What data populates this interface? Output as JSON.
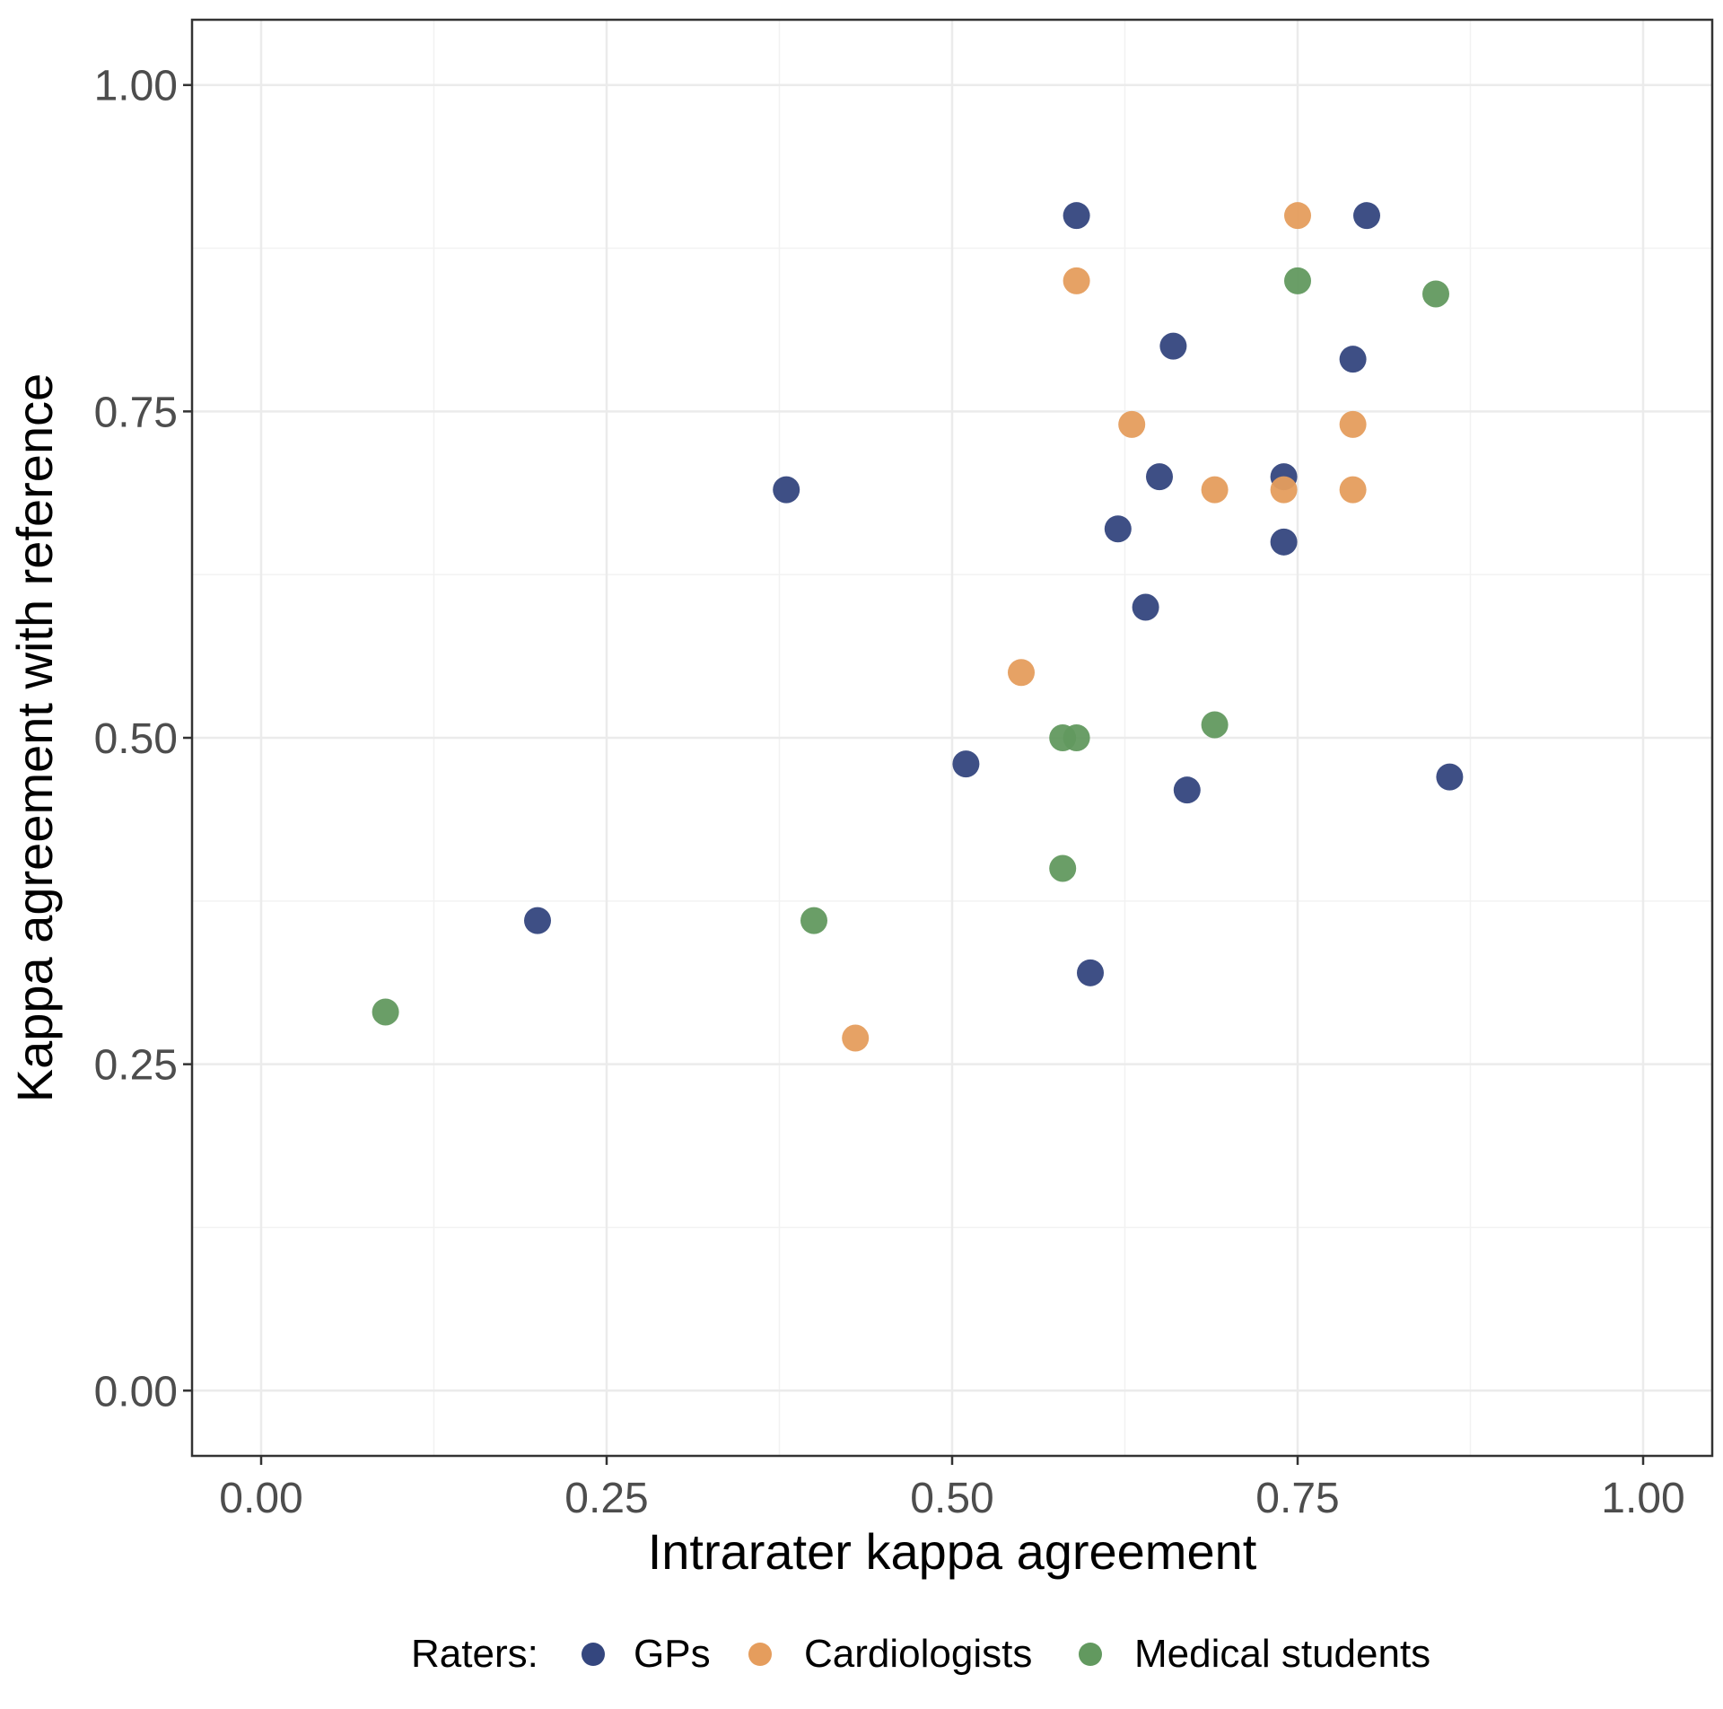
{
  "chart_data": {
    "type": "scatter",
    "xlabel": "Intrarater kappa agreement",
    "ylabel": "Kappa agreement with reference",
    "xlim": [
      -0.05,
      1.05
    ],
    "ylim": [
      -0.05,
      1.05
    ],
    "x_ticks": [
      "0.00",
      "0.25",
      "0.50",
      "0.75",
      "1.00"
    ],
    "y_ticks": [
      "0.00",
      "0.25",
      "0.50",
      "0.75",
      "1.00"
    ],
    "grid": true,
    "legend": {
      "title": "Raters:",
      "position": "bottom"
    },
    "series": [
      {
        "name": "GPs",
        "color": "#34467e",
        "points": [
          {
            "x": 0.59,
            "y": 0.9
          },
          {
            "x": 0.8,
            "y": 0.9
          },
          {
            "x": 0.66,
            "y": 0.8
          },
          {
            "x": 0.79,
            "y": 0.79
          },
          {
            "x": 0.38,
            "y": 0.69
          },
          {
            "x": 0.65,
            "y": 0.7
          },
          {
            "x": 0.74,
            "y": 0.7
          },
          {
            "x": 0.62,
            "y": 0.66
          },
          {
            "x": 0.74,
            "y": 0.65
          },
          {
            "x": 0.64,
            "y": 0.6
          },
          {
            "x": 0.51,
            "y": 0.48
          },
          {
            "x": 0.67,
            "y": 0.46
          },
          {
            "x": 0.86,
            "y": 0.47
          },
          {
            "x": 0.2,
            "y": 0.36
          },
          {
            "x": 0.6,
            "y": 0.32
          }
        ]
      },
      {
        "name": "Cardiologists",
        "color": "#e59d5d",
        "points": [
          {
            "x": 0.75,
            "y": 0.9
          },
          {
            "x": 0.59,
            "y": 0.85
          },
          {
            "x": 0.63,
            "y": 0.74
          },
          {
            "x": 0.79,
            "y": 0.74
          },
          {
            "x": 0.69,
            "y": 0.69
          },
          {
            "x": 0.74,
            "y": 0.69
          },
          {
            "x": 0.79,
            "y": 0.69
          },
          {
            "x": 0.55,
            "y": 0.55
          },
          {
            "x": 0.43,
            "y": 0.27
          }
        ]
      },
      {
        "name": "Medical students",
        "color": "#62995f",
        "points": [
          {
            "x": 0.75,
            "y": 0.85
          },
          {
            "x": 0.85,
            "y": 0.84
          },
          {
            "x": 0.69,
            "y": 0.51
          },
          {
            "x": 0.58,
            "y": 0.5
          },
          {
            "x": 0.59,
            "y": 0.5
          },
          {
            "x": 0.58,
            "y": 0.4
          },
          {
            "x": 0.4,
            "y": 0.36
          },
          {
            "x": 0.09,
            "y": 0.29
          }
        ]
      }
    ]
  }
}
